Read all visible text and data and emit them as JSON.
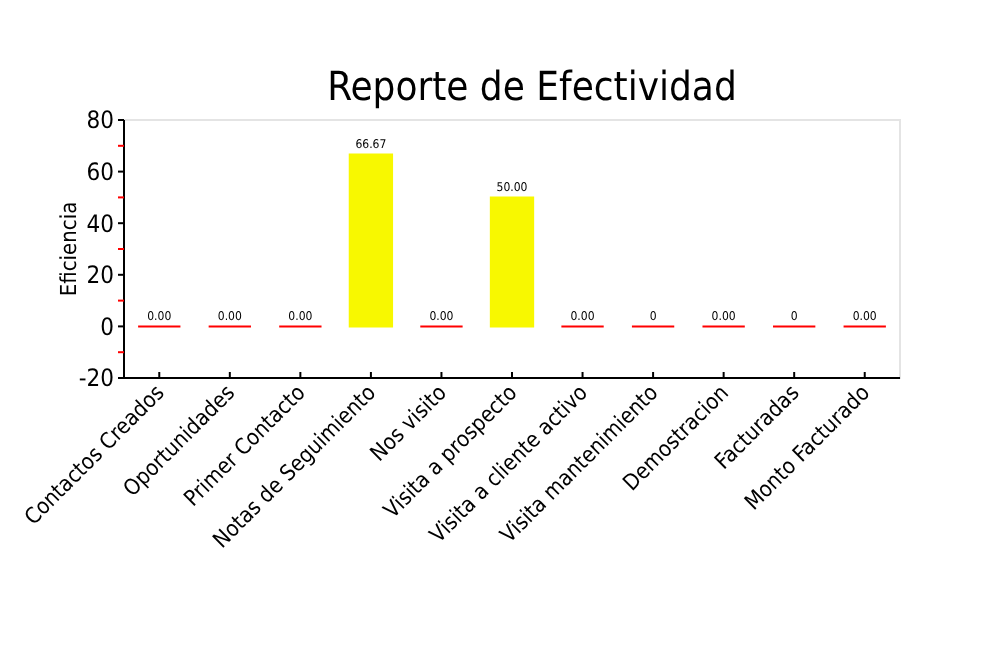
{
  "chart_data": {
    "type": "bar",
    "title": "Reporte de Efectividad",
    "ylabel": "Eficiencia",
    "categories": [
      "Contactos Creados",
      "Oportunidades",
      "Primer Contacto",
      "Notas de Seguimiento",
      "Nos visito",
      "Visita a prospecto",
      "Visita a cliente activo",
      "Visita mantenimiento",
      "Demostracion",
      "Facturadas",
      "Monto Facturado"
    ],
    "values": [
      0,
      0,
      0,
      66.67,
      0,
      50,
      0,
      0,
      0,
      0,
      0
    ],
    "colors": [
      "#ff0000",
      "#ff0000",
      "#ff0000",
      "#f8f800",
      "#ff0000",
      "#f8f800",
      "#ff0000",
      "#ff0000",
      "#ff0000",
      "#ff0000",
      "#ff0000"
    ],
    "value_labels": [
      "0.00",
      "0.00",
      "0.00",
      "66.67",
      "0.00",
      "50.00",
      "0.00",
      "0",
      "0.00",
      "0",
      "0.00"
    ],
    "ylim": [
      -20,
      80
    ],
    "yticks": [
      -20,
      {
        "value": -10,
        "label": null
      },
      0,
      {
        "value": 10,
        "label": null
      },
      20,
      {
        "value": 30,
        "label": null
      },
      40,
      {
        "value": 50,
        "label": null
      },
      60,
      {
        "value": 70,
        "label": null
      },
      80
    ],
    "grid": false
  }
}
